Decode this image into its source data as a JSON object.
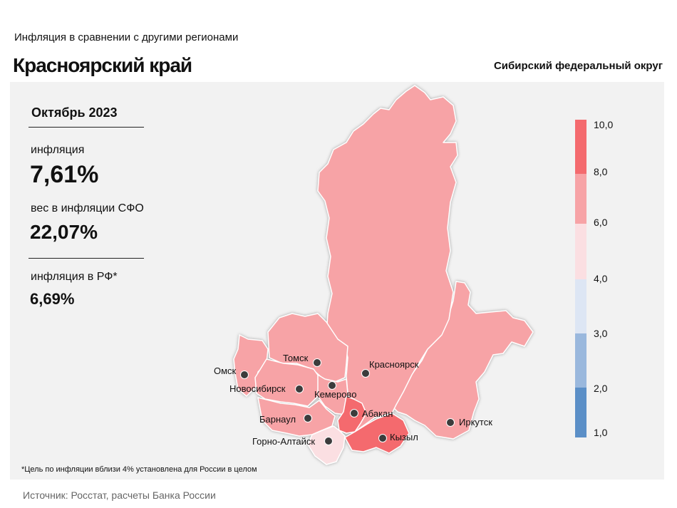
{
  "header": {
    "subtitle": "Инфляция  в сравнении  с другими  регионами",
    "title": "Красноярский край",
    "district": "Сибирский федеральный округ"
  },
  "stats": {
    "period": "Октябрь 2023",
    "inflation_label": "инфляция",
    "inflation_value": "7,61%",
    "weight_label": "вес в инфляции  СФО",
    "weight_value": "22,07%",
    "rf_label": "инфляция  в РФ*",
    "rf_value": "6,69%"
  },
  "legend": {
    "ticks": [
      "10,0",
      "8,0",
      "6,0",
      "4,0",
      "3,0",
      "2,0",
      "1,0"
    ],
    "colors": [
      "#f46a6e",
      "#f7a3a6",
      "#fbdfe2",
      "#dde6f4",
      "#9ab8dd",
      "#5b8fc7"
    ]
  },
  "map": {
    "region_colors": {
      "krasnoyarsk": "#f7a3a6",
      "irkutsk": "#f7a3a6",
      "tomsk": "#f7a3a6",
      "omsk": "#f7a3a6",
      "novosibirsk": "#f7a3a6",
      "kemerovo": "#f7a3a6",
      "altai_krai": "#f7a3a6",
      "khakassia": "#f46a6e",
      "tyva": "#f46a6e",
      "altai_rep": "#fbdfe2"
    },
    "cities": [
      {
        "id": "omsk",
        "label": "Омск"
      },
      {
        "id": "tomsk",
        "label": "Томск"
      },
      {
        "id": "novosibirsk",
        "label": "Новосибирск"
      },
      {
        "id": "kemerovo",
        "label": "Кемерово"
      },
      {
        "id": "krasnoyarsk",
        "label": "Красноярск"
      },
      {
        "id": "barnaul",
        "label": "Барнаул"
      },
      {
        "id": "abakan",
        "label": "Абакан"
      },
      {
        "id": "gorno_altaysk",
        "label": "Горно-Алтайск"
      },
      {
        "id": "kyzyl",
        "label": "Кызыл"
      },
      {
        "id": "irkutsk",
        "label": "Иркутск"
      }
    ]
  },
  "footnote": "*Цель по инфляции вблизи 4% установлена для России в целом",
  "source": "Источник: Росстат, расчеты Банка России"
}
